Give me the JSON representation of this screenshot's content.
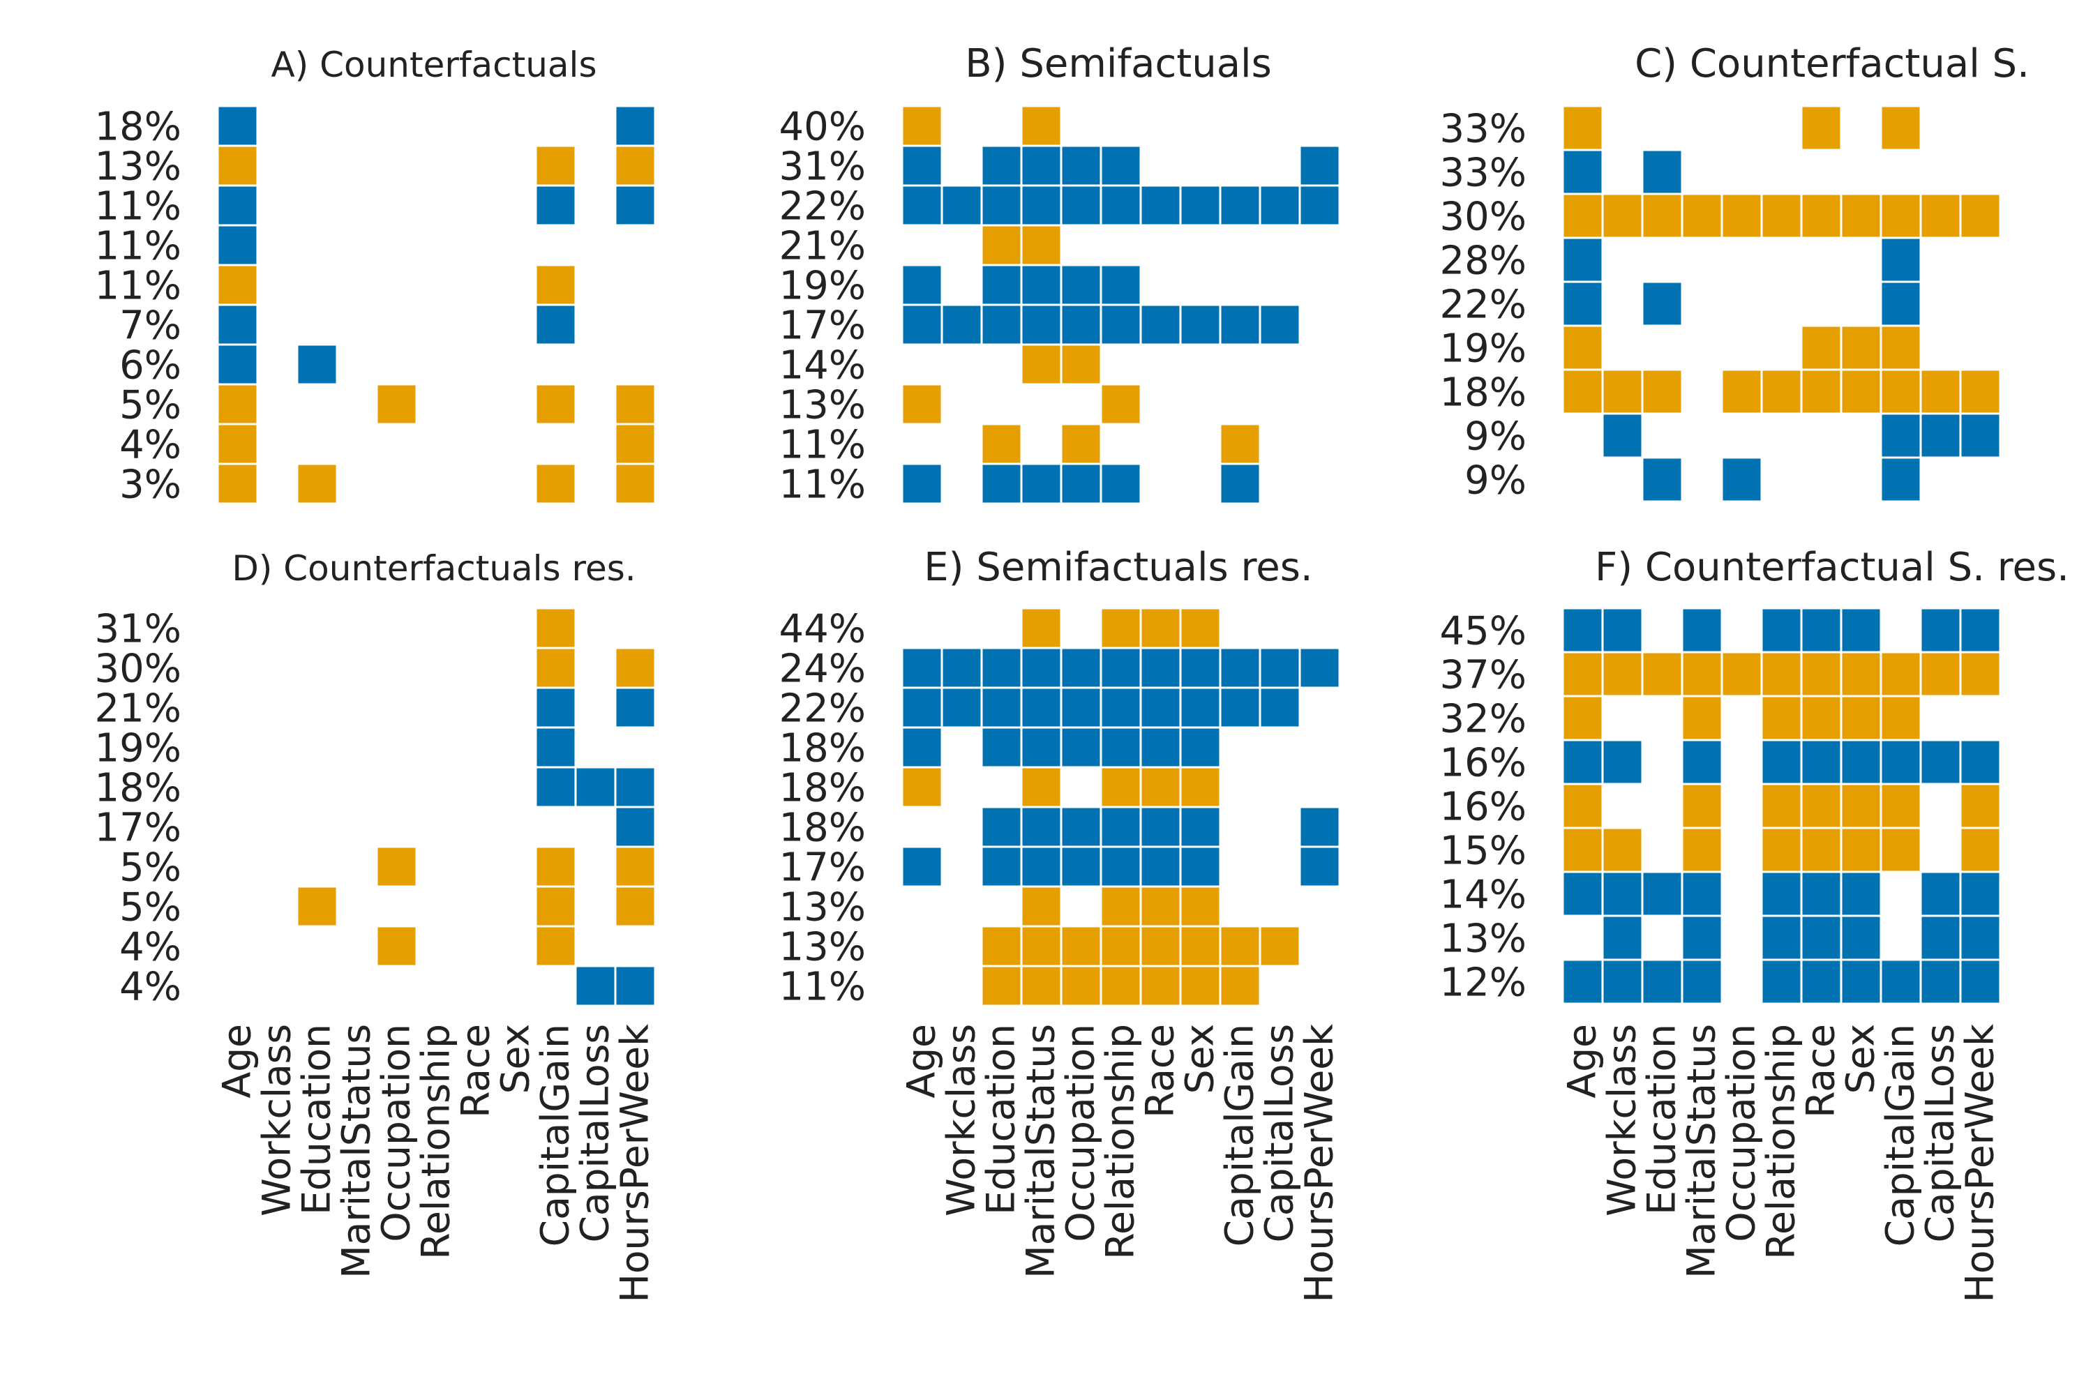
{
  "colors": {
    "positive": "#0072B2",
    "negative": "#E69F00",
    "gap": "#ffffff"
  },
  "features": [
    "Age",
    "Workclass",
    "Education",
    "MaritalStatus",
    "Occupation",
    "Relationship",
    "Race",
    "Sex",
    "CapitalGain",
    "CapitalLoss",
    "HoursPerWeek"
  ],
  "chart_data": [
    {
      "type": "heatmap",
      "title": "A) Counterfactuals",
      "rows": [
        {
          "label": "18%",
          "value": 18,
          "cells": "B.........B"
        },
        {
          "label": "13%",
          "value": 13,
          "cells": "O.......O.O"
        },
        {
          "label": "11%",
          "value": 11,
          "cells": "B.......B.B"
        },
        {
          "label": "11%",
          "value": 11,
          "cells": "B.........."
        },
        {
          "label": "11%",
          "value": 11,
          "cells": "O.......O.."
        },
        {
          "label": "7%",
          "value": 7,
          "cells": "B.......B.."
        },
        {
          "label": "6%",
          "value": 6,
          "cells": "B.B........"
        },
        {
          "label": "5%",
          "value": 5,
          "cells": "O...O...O.O"
        },
        {
          "label": "4%",
          "value": 4,
          "cells": "O.........O"
        },
        {
          "label": "3%",
          "value": 3,
          "cells": "O.O.....O.O"
        }
      ],
      "show_columns": true
    },
    {
      "type": "heatmap",
      "title": "B) Semifactuals",
      "rows": [
        {
          "label": "40%",
          "value": 40,
          "cells": "O..O......."
        },
        {
          "label": "31%",
          "value": 31,
          "cells": "B.BBBB....B"
        },
        {
          "label": "22%",
          "value": 22,
          "cells": "BBBBBBBBBBB"
        },
        {
          "label": "21%",
          "value": 21,
          "cells": "..OO......."
        },
        {
          "label": "19%",
          "value": 19,
          "cells": "B.BBBB....."
        },
        {
          "label": "17%",
          "value": 17,
          "cells": "BBBBBBBBBB."
        },
        {
          "label": "14%",
          "value": 14,
          "cells": "...OO......"
        },
        {
          "label": "13%",
          "value": 13,
          "cells": "O....O....."
        },
        {
          "label": "11%",
          "value": 11,
          "cells": "..O.O...O.."
        },
        {
          "label": "11%",
          "value": 11,
          "cells": "B.BBBB..B.."
        }
      ],
      "show_columns": true
    },
    {
      "type": "heatmap",
      "title": "C) Counterfactual S.",
      "rows": [
        {
          "label": "33%",
          "value": 33,
          "cells": "O.....O.O.."
        },
        {
          "label": "33%",
          "value": 33,
          "cells": "B.B........"
        },
        {
          "label": "30%",
          "value": 30,
          "cells": "OOOOOOOOOOO"
        },
        {
          "label": "28%",
          "value": 28,
          "cells": "B.......B.."
        },
        {
          "label": "22%",
          "value": 22,
          "cells": "B.B.....B.."
        },
        {
          "label": "19%",
          "value": 19,
          "cells": "O.....OOO.."
        },
        {
          "label": "18%",
          "value": 18,
          "cells": "OOO.OOOOOOO"
        },
        {
          "label": "9%",
          "value": 9,
          "cells": ".B......BBB"
        },
        {
          "label": "9%",
          "value": 9,
          "cells": "..B.B...B.."
        }
      ],
      "show_columns": true
    },
    {
      "type": "heatmap",
      "title": "D) Counterfactuals res.",
      "rows": [
        {
          "label": "31%",
          "value": 31,
          "cells": "........O.."
        },
        {
          "label": "30%",
          "value": 30,
          "cells": "........O.O"
        },
        {
          "label": "21%",
          "value": 21,
          "cells": "........B.B"
        },
        {
          "label": "19%",
          "value": 19,
          "cells": "........B.."
        },
        {
          "label": "18%",
          "value": 18,
          "cells": "........BBB"
        },
        {
          "label": "17%",
          "value": 17,
          "cells": "..........B"
        },
        {
          "label": "5%",
          "value": 5,
          "cells": "....O...O.O"
        },
        {
          "label": "5%",
          "value": 5,
          "cells": "..O.....O.O"
        },
        {
          "label": "4%",
          "value": 4,
          "cells": "....O...O.."
        },
        {
          "label": "4%",
          "value": 4,
          "cells": ".........BB"
        }
      ],
      "show_columns": true
    },
    {
      "type": "heatmap",
      "title": "E) Semifactuals res.",
      "rows": [
        {
          "label": "44%",
          "value": 44,
          "cells": "...O.OOO..."
        },
        {
          "label": "24%",
          "value": 24,
          "cells": "BBBBBBBBBBB"
        },
        {
          "label": "22%",
          "value": 22,
          "cells": "BBBBBBBBBB."
        },
        {
          "label": "18%",
          "value": 18,
          "cells": "B.BBBBBB..."
        },
        {
          "label": "18%",
          "value": 18,
          "cells": "O..O.OOO..."
        },
        {
          "label": "18%",
          "value": 18,
          "cells": "..BBBBBB..B"
        },
        {
          "label": "17%",
          "value": 17,
          "cells": "B.BBBBBB..B"
        },
        {
          "label": "13%",
          "value": 13,
          "cells": "...O.OOO..."
        },
        {
          "label": "13%",
          "value": 13,
          "cells": "..OOOOOOOO."
        },
        {
          "label": "11%",
          "value": 11,
          "cells": "..OOOOOOO.."
        }
      ],
      "show_columns": true
    },
    {
      "type": "heatmap",
      "title": "F) Counterfactual S. res.",
      "rows": [
        {
          "label": "45%",
          "value": 45,
          "cells": "BB.B.BBB.BB"
        },
        {
          "label": "37%",
          "value": 37,
          "cells": "OOOOOOOOOOO"
        },
        {
          "label": "32%",
          "value": 32,
          "cells": "O..O.OOOO.."
        },
        {
          "label": "16%",
          "value": 16,
          "cells": "BB.B.BBBBBB"
        },
        {
          "label": "16%",
          "value": 16,
          "cells": "O..O.OOOO.O"
        },
        {
          "label": "15%",
          "value": 15,
          "cells": "OO.O.OOOO.O"
        },
        {
          "label": "14%",
          "value": 14,
          "cells": "BBBB.BBB.BB"
        },
        {
          "label": "13%",
          "value": 13,
          "cells": ".B.B.BBB.BB"
        },
        {
          "label": "12%",
          "value": 12,
          "cells": "BBBB.BBBBBB"
        }
      ],
      "show_columns": true
    }
  ]
}
